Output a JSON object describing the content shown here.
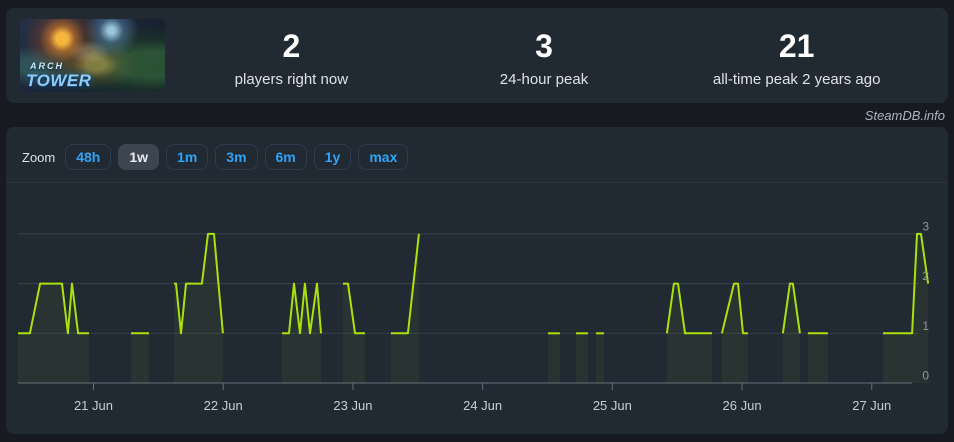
{
  "app": {
    "watermark": "SteamDB.info"
  },
  "header": {
    "banner": {
      "line1": "ARCH",
      "line2": "TOWER",
      "game": "ArchTower"
    },
    "stats": [
      {
        "value": "2",
        "label": "players right now"
      },
      {
        "value": "3",
        "label": "24-hour peak"
      },
      {
        "value": "21",
        "label": "all-time peak 2 years ago"
      }
    ]
  },
  "toolbar": {
    "zoom_label": "Zoom",
    "ranges": [
      {
        "label": "48h",
        "selected": false
      },
      {
        "label": "1w",
        "selected": true
      },
      {
        "label": "1m",
        "selected": false
      },
      {
        "label": "3m",
        "selected": false
      },
      {
        "label": "6m",
        "selected": false
      },
      {
        "label": "1y",
        "selected": false
      },
      {
        "label": "max",
        "selected": false
      }
    ]
  },
  "chart_data": {
    "type": "line",
    "series_name": "Players",
    "line_color": "#a9e20d",
    "fill_opacity": 0.06,
    "x_unit": "day of June (fractional part = time of day); null gaps between segments",
    "segments": [
      [
        [
          20.418,
          1
        ],
        [
          20.51,
          1
        ],
        [
          20.588,
          2
        ],
        [
          20.757,
          2
        ],
        [
          20.803,
          1
        ],
        [
          20.834,
          2
        ],
        [
          20.881,
          1
        ],
        [
          20.965,
          1
        ]
      ],
      [
        [
          21.289,
          1
        ],
        [
          21.428,
          1
        ]
      ],
      [
        [
          21.621,
          2
        ],
        [
          21.636,
          2
        ],
        [
          21.675,
          1
        ],
        [
          21.713,
          2
        ],
        [
          21.836,
          2
        ],
        [
          21.883,
          3
        ],
        [
          21.929,
          3
        ],
        [
          21.998,
          1
        ]
      ],
      [
        [
          22.453,
          1
        ],
        [
          22.507,
          1
        ],
        [
          22.546,
          2
        ],
        [
          22.592,
          1
        ],
        [
          22.63,
          2
        ],
        [
          22.669,
          1
        ],
        [
          22.723,
          2
        ],
        [
          22.754,
          1
        ]
      ],
      [
        [
          22.923,
          2
        ],
        [
          22.962,
          2
        ],
        [
          23.016,
          1
        ],
        [
          23.093,
          1
        ]
      ],
      [
        [
          23.293,
          1
        ],
        [
          23.424,
          1
        ],
        [
          23.509,
          3
        ]
      ],
      [
        [
          24.504,
          1
        ],
        [
          24.596,
          1
        ]
      ],
      [
        [
          24.72,
          1
        ],
        [
          24.812,
          1
        ]
      ],
      [
        [
          24.874,
          1
        ],
        [
          24.936,
          1
        ]
      ],
      [
        [
          25.421,
          1
        ],
        [
          25.475,
          2
        ],
        [
          25.506,
          2
        ],
        [
          25.56,
          1
        ],
        [
          25.768,
          1
        ]
      ],
      [
        [
          25.845,
          1
        ],
        [
          25.938,
          2
        ],
        [
          25.969,
          2
        ],
        [
          26.007,
          1
        ],
        [
          26.046,
          1
        ]
      ],
      [
        [
          26.315,
          1
        ],
        [
          26.369,
          2
        ],
        [
          26.392,
          2
        ],
        [
          26.446,
          1
        ]
      ],
      [
        [
          26.508,
          1
        ],
        [
          26.662,
          1
        ]
      ],
      [
        [
          27.087,
          1
        ],
        [
          27.311,
          1
        ],
        [
          27.349,
          3
        ],
        [
          27.38,
          3
        ],
        [
          27.434,
          2
        ]
      ]
    ],
    "x_ticks": [
      {
        "day": 21,
        "label": "21 Jun"
      },
      {
        "day": 22,
        "label": "22 Jun"
      },
      {
        "day": 23,
        "label": "23 Jun"
      },
      {
        "day": 24,
        "label": "24 Jun"
      },
      {
        "day": 25,
        "label": "25 Jun"
      },
      {
        "day": 26,
        "label": "26 Jun"
      },
      {
        "day": 27,
        "label": "27 Jun"
      }
    ],
    "y_ticks": [
      0,
      1,
      2,
      3
    ],
    "xlim": [
      20.418,
      27.449
    ],
    "ylim": [
      0,
      4.02
    ],
    "grid": true,
    "y_axis_side": "right",
    "legend": false
  },
  "colors": {
    "page_bg": "#171a21",
    "card_bg": "#212933",
    "accent_blue": "#2ea4f7",
    "line": "#a9e20d",
    "grid": "#3a414b",
    "axis": "#66707b",
    "x_label": "#c6cdd4",
    "y_label": "#8d96a0"
  }
}
